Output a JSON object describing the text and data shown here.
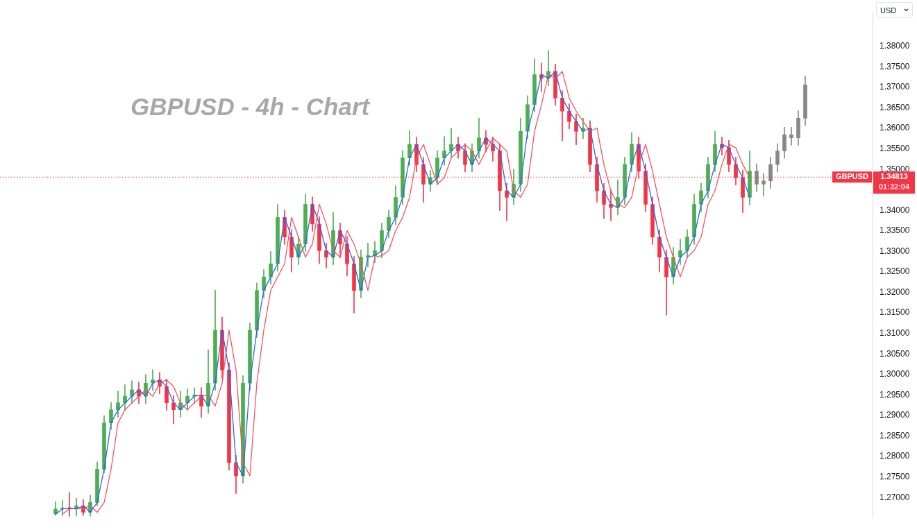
{
  "chart_data": {
    "type": "candlestick",
    "title": "GBPUSD - 4h - Chart",
    "categories": [
      null,
      null,
      null,
      null,
      null,
      null,
      null,
      null,
      null,
      null,
      null,
      null,
      null,
      null,
      null,
      null,
      null,
      null,
      null,
      null,
      null,
      null,
      null,
      null,
      null,
      null,
      null,
      null,
      null,
      null,
      null,
      null,
      null,
      null,
      null,
      null,
      null,
      null,
      null,
      null,
      null,
      null,
      null,
      null,
      null,
      null,
      null,
      null,
      null,
      null,
      null,
      null,
      null,
      null,
      null,
      null,
      null,
      null,
      null,
      null,
      null,
      null,
      null,
      null,
      null,
      null,
      null,
      null,
      null,
      null,
      null,
      null,
      null,
      null,
      null,
      null,
      null,
      null,
      null,
      null,
      null,
      null,
      null,
      null,
      null,
      null,
      null,
      null,
      null,
      null,
      null,
      null,
      null,
      null,
      null,
      null,
      null,
      null,
      null,
      null,
      null,
      null,
      null,
      null,
      null,
      null,
      null,
      null,
      null
    ],
    "ohlc": [
      [
        1.266,
        1.269,
        1.2656,
        1.2672
      ],
      [
        1.2672,
        1.2693,
        1.2655,
        1.2675
      ],
      [
        1.2675,
        1.2712,
        1.2654,
        1.2672
      ],
      [
        1.2672,
        1.2698,
        1.2655,
        1.268
      ],
      [
        1.268,
        1.2695,
        1.2656,
        1.2664
      ],
      [
        1.2664,
        1.2706,
        1.2655,
        1.2688
      ],
      [
        1.2688,
        1.2787,
        1.268,
        1.2769
      ],
      [
        1.2769,
        1.29,
        1.276,
        1.2882
      ],
      [
        1.2882,
        1.2932,
        1.2866,
        1.2914
      ],
      [
        1.2914,
        1.296,
        1.2896,
        1.2931
      ],
      [
        1.2931,
        1.2975,
        1.2913,
        1.2947
      ],
      [
        1.2947,
        1.2985,
        1.2929,
        1.2963
      ],
      [
        1.2963,
        1.2981,
        1.2929,
        1.2947
      ],
      [
        1.2947,
        1.3,
        1.2929,
        1.2979
      ],
      [
        1.2979,
        1.3012,
        1.2961,
        1.2987
      ],
      [
        1.2987,
        1.3005,
        1.2953,
        1.2971
      ],
      [
        1.2971,
        1.2989,
        1.2913,
        1.2931
      ],
      [
        1.2931,
        1.2949,
        1.288,
        1.2914
      ],
      [
        1.2914,
        1.296,
        1.2896,
        1.2931
      ],
      [
        1.2931,
        1.2965,
        1.2913,
        1.2947
      ],
      [
        1.2947,
        1.2968,
        1.2929,
        1.295
      ],
      [
        1.295,
        1.2968,
        1.2895,
        1.2923
      ],
      [
        1.2923,
        1.306,
        1.2905,
        1.2979
      ],
      [
        1.2979,
        1.3205,
        1.2961,
        1.3108
      ],
      [
        1.3108,
        1.314,
        1.299,
        1.3011
      ],
      [
        1.3011,
        1.3029,
        1.2767,
        1.2785
      ],
      [
        1.2785,
        1.2803,
        1.271,
        1.2753
      ],
      [
        1.2753,
        1.2997,
        1.2735,
        1.2979
      ],
      [
        1.2979,
        1.3126,
        1.2961,
        1.3108
      ],
      [
        1.3108,
        1.3223,
        1.309,
        1.3205
      ],
      [
        1.3205,
        1.3256,
        1.3187,
        1.3238
      ],
      [
        1.3238,
        1.33,
        1.322,
        1.327
      ],
      [
        1.327,
        1.3415,
        1.3252,
        1.3383
      ],
      [
        1.3383,
        1.3401,
        1.3317,
        1.3335
      ],
      [
        1.3335,
        1.3353,
        1.325,
        1.3286
      ],
      [
        1.3286,
        1.3336,
        1.3268,
        1.3318
      ],
      [
        1.3318,
        1.344,
        1.33,
        1.3415
      ],
      [
        1.3415,
        1.3433,
        1.3349,
        1.3367
      ],
      [
        1.3367,
        1.3385,
        1.327,
        1.3302
      ],
      [
        1.3302,
        1.332,
        1.326,
        1.3286
      ],
      [
        1.3286,
        1.3395,
        1.3268,
        1.3351
      ],
      [
        1.3351,
        1.3369,
        1.3285,
        1.3318
      ],
      [
        1.3318,
        1.3336,
        1.324,
        1.327
      ],
      [
        1.327,
        1.3288,
        1.315,
        1.3205
      ],
      [
        1.3205,
        1.3304,
        1.3187,
        1.3286
      ],
      [
        1.3286,
        1.332,
        1.3262,
        1.329
      ],
      [
        1.329,
        1.3325,
        1.3272,
        1.3302
      ],
      [
        1.3302,
        1.3369,
        1.3284,
        1.3351
      ],
      [
        1.3351,
        1.3401,
        1.3333,
        1.3383
      ],
      [
        1.3383,
        1.346,
        1.3365,
        1.3432
      ],
      [
        1.3432,
        1.3546,
        1.3414,
        1.3528
      ],
      [
        1.3528,
        1.3595,
        1.351,
        1.3561
      ],
      [
        1.3561,
        1.3579,
        1.3494,
        1.3512
      ],
      [
        1.3512,
        1.353,
        1.342,
        1.3464
      ],
      [
        1.3464,
        1.3498,
        1.3446,
        1.348
      ],
      [
        1.348,
        1.3546,
        1.3462,
        1.3528
      ],
      [
        1.3528,
        1.358,
        1.351,
        1.3545
      ],
      [
        1.3545,
        1.36,
        1.3527,
        1.3561
      ],
      [
        1.3561,
        1.3579,
        1.3527,
        1.3545
      ],
      [
        1.3545,
        1.3563,
        1.3494,
        1.3512
      ],
      [
        1.3512,
        1.3563,
        1.3494,
        1.3545
      ],
      [
        1.3545,
        1.3625,
        1.3527,
        1.3577
      ],
      [
        1.3577,
        1.3595,
        1.3543,
        1.3561
      ],
      [
        1.3561,
        1.3579,
        1.352,
        1.3545
      ],
      [
        1.3545,
        1.3563,
        1.34,
        1.3448
      ],
      [
        1.3448,
        1.3466,
        1.3375,
        1.3432
      ],
      [
        1.3432,
        1.35,
        1.3414,
        1.3464
      ],
      [
        1.3464,
        1.3625,
        1.3446,
        1.3593
      ],
      [
        1.3593,
        1.368,
        1.3575,
        1.3658
      ],
      [
        1.3658,
        1.377,
        1.364,
        1.3731
      ],
      [
        1.3731,
        1.376,
        1.369,
        1.3722
      ],
      [
        1.3722,
        1.379,
        1.3704,
        1.3739
      ],
      [
        1.3739,
        1.3757,
        1.3656,
        1.3674
      ],
      [
        1.3674,
        1.3692,
        1.357,
        1.3642
      ],
      [
        1.3642,
        1.366,
        1.3599,
        1.3617
      ],
      [
        1.3617,
        1.3635,
        1.356,
        1.3593
      ],
      [
        1.3593,
        1.3625,
        1.3575,
        1.3601
      ],
      [
        1.3601,
        1.3619,
        1.3494,
        1.3512
      ],
      [
        1.3512,
        1.353,
        1.342,
        1.3448
      ],
      [
        1.3448,
        1.3466,
        1.338,
        1.3415
      ],
      [
        1.3415,
        1.345,
        1.3375,
        1.3407
      ],
      [
        1.3407,
        1.3475,
        1.3389,
        1.3432
      ],
      [
        1.3432,
        1.353,
        1.3414,
        1.3512
      ],
      [
        1.3512,
        1.359,
        1.3494,
        1.3561
      ],
      [
        1.3561,
        1.3579,
        1.3478,
        1.3496
      ],
      [
        1.3496,
        1.3514,
        1.3397,
        1.3415
      ],
      [
        1.3415,
        1.3433,
        1.3317,
        1.3335
      ],
      [
        1.3335,
        1.3353,
        1.325,
        1.3286
      ],
      [
        1.3286,
        1.3304,
        1.3145,
        1.3238
      ],
      [
        1.3238,
        1.331,
        1.322,
        1.3286
      ],
      [
        1.3286,
        1.333,
        1.3268,
        1.3302
      ],
      [
        1.3302,
        1.3353,
        1.3284,
        1.3335
      ],
      [
        1.3335,
        1.344,
        1.3317,
        1.3415
      ],
      [
        1.3415,
        1.3466,
        1.3397,
        1.3448
      ],
      [
        1.3448,
        1.353,
        1.343,
        1.3512
      ],
      [
        1.3512,
        1.3593,
        1.3494,
        1.3561
      ],
      [
        1.3561,
        1.3579,
        1.3535,
        1.3553
      ],
      [
        1.3553,
        1.3571,
        1.3494,
        1.3512
      ],
      [
        1.3512,
        1.353,
        1.3462,
        1.348
      ],
      [
        1.348,
        1.3498,
        1.3395,
        1.3432
      ],
      [
        1.3432,
        1.3545,
        1.3414,
        1.3496
      ],
      [
        1.3496,
        1.3514,
        1.3446,
        1.3464
      ],
      [
        1.3464,
        1.349,
        1.3435,
        1.3472
      ],
      [
        1.3472,
        1.353,
        1.3454,
        1.3512
      ],
      [
        1.3512,
        1.3563,
        1.3494,
        1.3545
      ],
      [
        1.3545,
        1.3603,
        1.3527,
        1.3585
      ],
      [
        1.3585,
        1.3603,
        1.3559,
        1.3577
      ],
      [
        1.3577,
        1.3643,
        1.3559,
        1.3625
      ],
      [
        1.3625,
        1.3728,
        1.3607,
        1.3706
      ]
    ],
    "colors": [
      "#4caf50",
      "#4caf50",
      "#f23645",
      "#4caf50",
      "#f23645",
      "#4caf50",
      "#4caf50",
      "#4caf50",
      "#4caf50",
      "#4caf50",
      "#4caf50",
      "#4caf50",
      "#f23645",
      "#4caf50",
      "#4caf50",
      "#f23645",
      "#f23645",
      "#f23645",
      "#4caf50",
      "#4caf50",
      "#4caf50",
      "#f23645",
      "#4caf50",
      "#4caf50",
      "#f23645",
      "#f23645",
      "#f23645",
      "#4caf50",
      "#4caf50",
      "#4caf50",
      "#4caf50",
      "#4caf50",
      "#4caf50",
      "#f23645",
      "#f23645",
      "#4caf50",
      "#4caf50",
      "#f23645",
      "#f23645",
      "#f23645",
      "#4caf50",
      "#f23645",
      "#f23645",
      "#f23645",
      "#4caf50",
      "#4caf50",
      "#4caf50",
      "#4caf50",
      "#4caf50",
      "#4caf50",
      "#4caf50",
      "#4caf50",
      "#f23645",
      "#f23645",
      "#4caf50",
      "#4caf50",
      "#4caf50",
      "#4caf50",
      "#f23645",
      "#f23645",
      "#4caf50",
      "#4caf50",
      "#f23645",
      "#f23645",
      "#f23645",
      "#f23645",
      "#4caf50",
      "#4caf50",
      "#4caf50",
      "#4caf50",
      "#f23645",
      "#4caf50",
      "#f23645",
      "#f23645",
      "#f23645",
      "#f23645",
      "#4caf50",
      "#f23645",
      "#f23645",
      "#f23645",
      "#f23645",
      "#4caf50",
      "#4caf50",
      "#4caf50",
      "#f23645",
      "#f23645",
      "#f23645",
      "#f23645",
      "#f23645",
      "#4caf50",
      "#4caf50",
      "#4caf50",
      "#4caf50",
      "#4caf50",
      "#4caf50",
      "#4caf50",
      "#f23645",
      "#f23645",
      "#f23645",
      "#f23645",
      "#4caf50",
      "#888888",
      "#888888",
      "#888888",
      "#888888",
      "#888888",
      "#888888",
      "#888888",
      "#888888"
    ],
    "series": [
      {
        "type": "line",
        "color": "#2962ff",
        "values": [
          1.266,
          1.2672,
          1.2675,
          1.2672,
          1.268,
          1.2664,
          1.2688,
          1.2769,
          1.2882,
          1.2914,
          1.2931,
          1.2947,
          1.2963,
          1.2947,
          1.2979,
          1.2987,
          1.2971,
          1.2931,
          1.2914,
          1.2931,
          1.2947,
          1.295,
          1.2923,
          1.2979,
          1.3108,
          1.3011,
          1.2785,
          1.2753,
          1.2979,
          1.3108,
          1.3205,
          1.3238,
          1.327,
          1.3383,
          1.3335,
          1.3286,
          1.3318,
          1.3415,
          1.3367,
          1.3302,
          1.3286,
          1.3351,
          1.3318,
          1.327,
          1.3205,
          1.3286,
          1.329,
          1.3302,
          1.3351,
          1.3383,
          1.3432,
          1.3528,
          1.3561,
          1.3512,
          1.3464,
          1.348,
          1.3528,
          1.3545,
          1.3561,
          1.3545,
          1.3512,
          1.3545,
          1.3577,
          1.3561,
          1.3545,
          1.3448,
          1.3432,
          1.3464,
          1.3593,
          1.3658,
          1.3731,
          1.3722,
          1.3739,
          1.3674,
          1.3642,
          1.3617,
          1.3593,
          1.3601,
          1.3512,
          1.3448,
          1.3415,
          1.3407,
          1.3432,
          1.3512,
          1.3561,
          1.3496,
          1.3415,
          1.3335,
          1.3286,
          1.3238,
          1.3286,
          1.3302,
          1.3335,
          1.3415,
          1.3448,
          1.3512,
          1.3561,
          1.3553,
          1.3512,
          1.348,
          1.3432,
          null,
          null,
          null,
          null,
          null,
          null,
          null,
          null
        ]
      },
      {
        "type": "line",
        "color": "#f7525f",
        "values": [
          null,
          1.266,
          1.2672,
          1.2675,
          1.2672,
          1.268,
          1.2664,
          1.2688,
          1.2769,
          1.2882,
          1.2914,
          1.2931,
          1.2947,
          1.2963,
          1.2947,
          1.2979,
          1.2987,
          1.2971,
          1.2931,
          1.2914,
          1.2931,
          1.2947,
          1.295,
          1.2923,
          1.2979,
          1.3108,
          1.3011,
          1.2785,
          1.2753,
          1.2979,
          1.3108,
          1.3205,
          1.3238,
          1.327,
          1.3383,
          1.3335,
          1.3286,
          1.3318,
          1.3415,
          1.3367,
          1.3302,
          1.3286,
          1.3351,
          1.3318,
          1.327,
          1.3205,
          1.3286,
          1.329,
          1.3302,
          1.3351,
          1.3383,
          1.3432,
          1.3528,
          1.3561,
          1.3512,
          1.3464,
          1.348,
          1.3528,
          1.3545,
          1.3561,
          1.3545,
          1.3512,
          1.3545,
          1.3577,
          1.3561,
          1.3545,
          1.3448,
          1.3432,
          1.3464,
          1.3593,
          1.3658,
          1.3731,
          1.3722,
          1.3739,
          1.3674,
          1.3642,
          1.3617,
          1.3593,
          1.3601,
          1.3512,
          1.3448,
          1.3415,
          1.3407,
          1.3432,
          1.3512,
          1.3561,
          1.3496,
          1.3415,
          1.3335,
          1.3286,
          1.3238,
          1.3286,
          1.3302,
          1.3335,
          1.3415,
          1.3448,
          1.3512,
          1.3561,
          1.3553,
          1.3512,
          1.348,
          null,
          null,
          null,
          null,
          null,
          null,
          null,
          null
        ]
      }
    ],
    "ylim": [
      1.265,
      1.3884
    ],
    "yticks": [
      {
        "value": 1.27,
        "label": "1.27000"
      },
      {
        "value": 1.275,
        "label": "1.27500"
      },
      {
        "value": 1.28,
        "label": "1.28000"
      },
      {
        "value": 1.285,
        "label": "1.28500"
      },
      {
        "value": 1.29,
        "label": "1.29000"
      },
      {
        "value": 1.295,
        "label": "1.29500"
      },
      {
        "value": 1.3,
        "label": "1.30000"
      },
      {
        "value": 1.305,
        "label": "1.30500"
      },
      {
        "value": 1.31,
        "label": "1.31000"
      },
      {
        "value": 1.315,
        "label": "1.31500"
      },
      {
        "value": 1.32,
        "label": "1.32000"
      },
      {
        "value": 1.325,
        "label": "1.32500"
      },
      {
        "value": 1.33,
        "label": "1.33000"
      },
      {
        "value": 1.335,
        "label": "1.33500"
      },
      {
        "value": 1.34,
        "label": "1.34000"
      },
      {
        "value": 1.35,
        "label": "1.35000"
      },
      {
        "value": 1.355,
        "label": "1.35500"
      },
      {
        "value": 1.36,
        "label": "1.36000"
      },
      {
        "value": 1.365,
        "label": "1.36500"
      },
      {
        "value": 1.37,
        "label": "1.37000"
      },
      {
        "value": 1.375,
        "label": "1.37500"
      },
      {
        "value": 1.38,
        "label": "1.38000"
      }
    ],
    "grid": false,
    "legend": false,
    "marker": "none",
    "tick_labels": "y",
    "ref_lines": [
      {
        "axis": "y",
        "value": 1.34813,
        "label": "GBPUSD",
        "color": "#f23645",
        "line_style": "dotted"
      }
    ],
    "annotations": [
      "1.34813",
      "01:32:04",
      "USD"
    ]
  }
}
